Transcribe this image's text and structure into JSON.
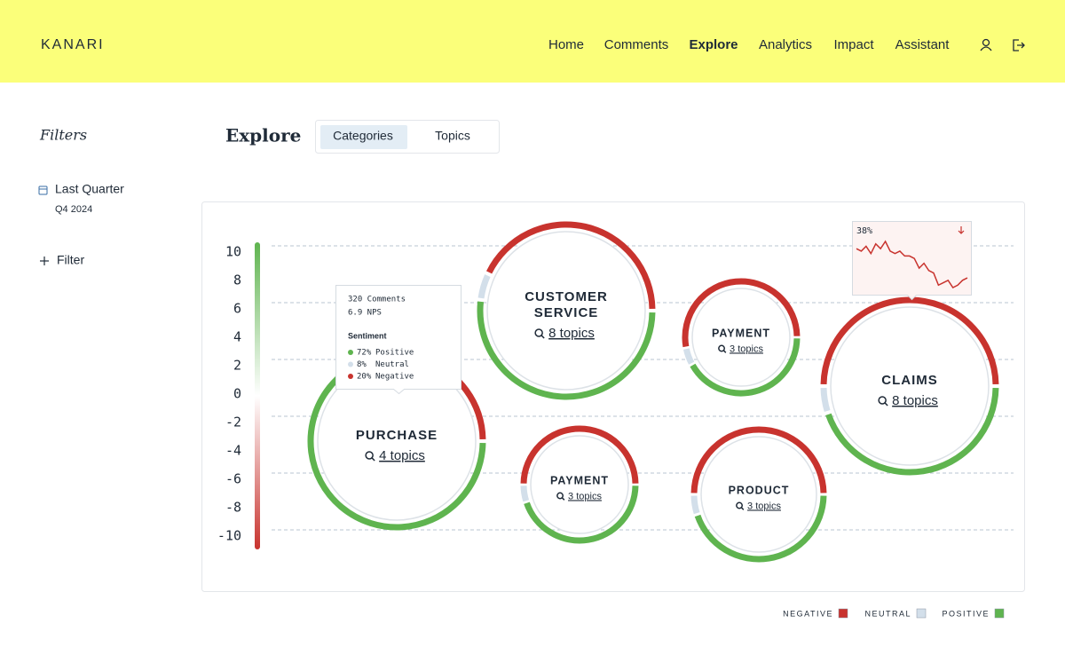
{
  "header": {
    "brand": "KANARI",
    "nav": [
      "Home",
      "Comments",
      "Explore",
      "Analytics",
      "Impact",
      "Assistant"
    ],
    "active": "Explore"
  },
  "sidebar": {
    "title": "Filters",
    "period": "Last Quarter",
    "period_detail": "Q4 2024",
    "add_filter": "Filter"
  },
  "page": {
    "title": "Explore",
    "tabs": [
      "Categories",
      "Topics"
    ],
    "active_tab": "Categories"
  },
  "chart_data": {
    "type": "bubble-ring",
    "yticks": [
      10,
      8,
      6,
      4,
      2,
      0,
      -2,
      -4,
      -6,
      -8,
      -10
    ],
    "colors": {
      "negative": "#c8332e",
      "neutral": "#d3dfea",
      "positive": "#5fb44f"
    },
    "bubbles": [
      {
        "name": [
          "PURCHASE"
        ],
        "topics": "4 topics",
        "sentiment": {
          "positive": 72,
          "neutral": 8,
          "negative": 20
        }
      },
      {
        "name": [
          "CUSTOMER",
          "SERVICE"
        ],
        "topics": "8 topics",
        "sentiment": {
          "positive": 52,
          "neutral": 5,
          "negative": 43
        }
      },
      {
        "name": [
          "PAYMENT"
        ],
        "topics": "3 topics",
        "sentiment": {
          "positive": 42,
          "neutral": 5,
          "negative": 53
        }
      },
      {
        "name": [
          "CLAIMS"
        ],
        "topics": "8 topics",
        "sentiment": {
          "positive": 45,
          "neutral": 5,
          "negative": 50
        }
      },
      {
        "name": [
          "PAYMENT"
        ],
        "topics": "3 topics",
        "sentiment": {
          "positive": 45,
          "neutral": 5,
          "negative": 50
        }
      },
      {
        "name": [
          "PRODUCT"
        ],
        "topics": "3 topics",
        "sentiment": {
          "positive": 45,
          "neutral": 5,
          "negative": 50
        }
      }
    ],
    "tooltip": {
      "comments": "320 Comments",
      "nps": "6.9 NPS",
      "heading": "Sentiment",
      "items": [
        {
          "value_label": "72%",
          "name": "Positive"
        },
        {
          "value_label": "8%",
          "name": "Neutral"
        },
        {
          "value_label": "20%",
          "name": "Negative"
        }
      ]
    },
    "sparkline": {
      "label": "38%",
      "values": [
        38,
        37,
        39,
        36,
        40,
        38,
        41,
        37,
        36,
        37,
        35,
        35,
        34,
        30,
        32,
        29,
        28,
        23,
        24,
        25,
        22,
        23,
        25,
        26
      ]
    },
    "legend": [
      "NEGATIVE",
      "NEUTRAL",
      "POSITIVE"
    ]
  }
}
